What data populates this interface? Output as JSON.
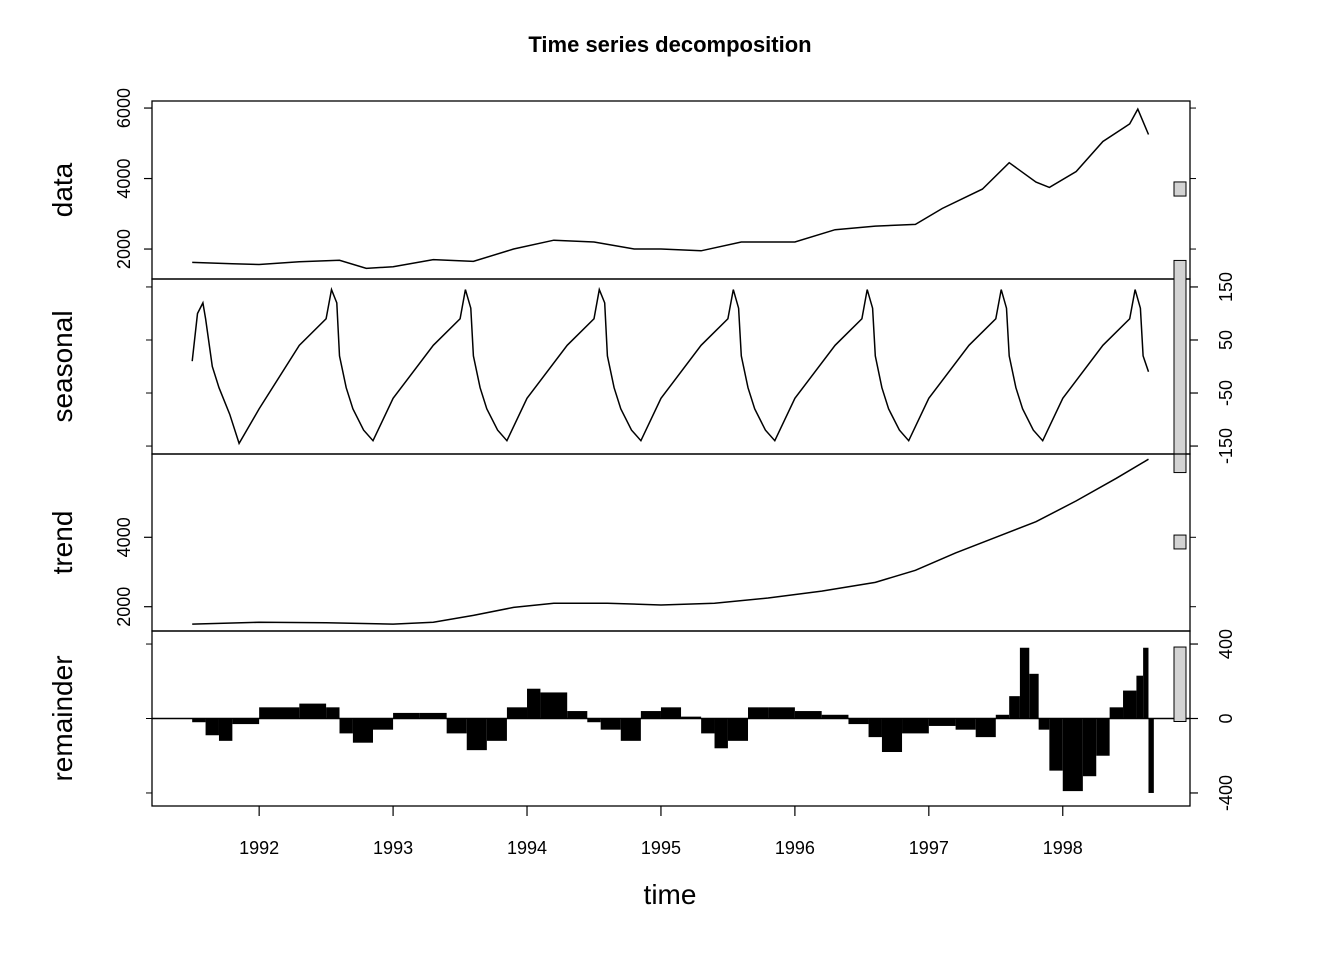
{
  "chart_data": {
    "type": "line",
    "title": "Time series decomposition",
    "xlabel": "time",
    "xlim": [
      1991.2,
      1998.95
    ],
    "x_ticks": [
      "1992",
      "1993",
      "1994",
      "1995",
      "1996",
      "1997",
      "1998"
    ],
    "x_tick_values": [
      1992,
      1993,
      1994,
      1995,
      1996,
      1997,
      1998
    ],
    "line_color": "#000000",
    "scale_bar_fill": "#d3d3d3",
    "panels": [
      {
        "name": "data",
        "ylabel": "data",
        "ylim": [
          1150,
          6200
        ],
        "ticks": [
          2000,
          4000,
          6000
        ],
        "tick_labels": [
          "2000",
          "4000",
          "6000"
        ],
        "tick_side": "left",
        "style": "line",
        "x": [
          1991.5,
          1991.8,
          1992.0,
          1992.3,
          1992.6,
          1992.8,
          1993.0,
          1993.3,
          1993.6,
          1993.9,
          1994.2,
          1994.5,
          1994.8,
          1995.0,
          1995.3,
          1995.6,
          1995.8,
          1996.0,
          1996.3,
          1996.6,
          1996.9,
          1997.1,
          1997.4,
          1997.6,
          1997.8,
          1997.9,
          1998.1,
          1998.3,
          1998.5,
          1998.56,
          1998.64
        ],
        "y": [
          1620,
          1580,
          1560,
          1640,
          1680,
          1450,
          1500,
          1700,
          1650,
          2000,
          2250,
          2200,
          2000,
          2000,
          1950,
          2200,
          2200,
          2200,
          2550,
          2650,
          2700,
          3150,
          3700,
          4450,
          3900,
          3750,
          4200,
          5050,
          5550,
          5970,
          5250
        ]
      },
      {
        "name": "seasonal",
        "ylabel": "seasonal",
        "ylim": [
          -165,
          165
        ],
        "ticks": [
          -150,
          -50,
          50,
          150
        ],
        "tick_labels": [
          "-150",
          "-50",
          "50",
          "150"
        ],
        "tick_side": "right",
        "style": "line",
        "x": [
          1991.5,
          1991.54,
          1991.58,
          1991.6,
          1991.65,
          1991.7,
          1991.78,
          1991.85,
          1992.0,
          1992.3,
          1992.5,
          1992.54,
          1992.58,
          1992.6,
          1992.65,
          1992.7,
          1992.78,
          1992.85,
          1993.0,
          1993.3,
          1993.5,
          1993.54,
          1993.58,
          1993.6,
          1993.65,
          1993.7,
          1993.78,
          1993.85,
          1994.0,
          1994.3,
          1994.5,
          1994.54,
          1994.58,
          1994.6,
          1994.65,
          1994.7,
          1994.78,
          1994.85,
          1995.0,
          1995.3,
          1995.5,
          1995.54,
          1995.58,
          1995.6,
          1995.65,
          1995.7,
          1995.78,
          1995.85,
          1996.0,
          1996.3,
          1996.5,
          1996.54,
          1996.58,
          1996.6,
          1996.65,
          1996.7,
          1996.78,
          1996.85,
          1997.0,
          1997.3,
          1997.5,
          1997.54,
          1997.58,
          1997.6,
          1997.65,
          1997.7,
          1997.78,
          1997.85,
          1998.0,
          1998.3,
          1998.5,
          1998.54,
          1998.58,
          1998.6,
          1998.64
        ],
        "y": [
          10,
          100,
          120,
          90,
          0,
          -40,
          -90,
          -145,
          -80,
          40,
          90,
          145,
          120,
          20,
          -40,
          -80,
          -120,
          -140,
          -60,
          40,
          90,
          145,
          110,
          20,
          -40,
          -80,
          -120,
          -140,
          -60,
          40,
          90,
          145,
          120,
          20,
          -40,
          -80,
          -120,
          -140,
          -60,
          40,
          90,
          145,
          110,
          20,
          -40,
          -80,
          -120,
          -140,
          -60,
          40,
          90,
          145,
          110,
          20,
          -40,
          -80,
          -120,
          -140,
          -60,
          40,
          90,
          145,
          110,
          20,
          -40,
          -80,
          -120,
          -140,
          -60,
          40,
          90,
          145,
          110,
          20,
          -10
        ]
      },
      {
        "name": "trend",
        "ylabel": "trend",
        "ylim": [
          1300,
          6400
        ],
        "ticks": [
          2000,
          4000
        ],
        "tick_labels": [
          "2000",
          "4000"
        ],
        "tick_side": "left",
        "style": "line",
        "x": [
          1991.5,
          1992.0,
          1992.5,
          1993.0,
          1993.3,
          1993.6,
          1993.9,
          1994.2,
          1994.6,
          1995.0,
          1995.4,
          1995.8,
          1996.2,
          1996.6,
          1996.9,
          1997.2,
          1997.5,
          1997.8,
          1998.1,
          1998.4,
          1998.64
        ],
        "y": [
          1500,
          1550,
          1540,
          1500,
          1550,
          1750,
          1980,
          2100,
          2100,
          2050,
          2100,
          2250,
          2450,
          2700,
          3050,
          3550,
          4000,
          4450,
          5050,
          5700,
          6250
        ]
      },
      {
        "name": "remainder",
        "ylabel": "remainder",
        "ylim": [
          -470,
          470
        ],
        "ticks": [
          -400,
          0,
          400
        ],
        "tick_labels": [
          "-400",
          "0",
          "400"
        ],
        "tick_side": "right",
        "style": "histogram",
        "x": [
          1991.5,
          1991.6,
          1991.7,
          1991.8,
          1992.0,
          1992.3,
          1992.5,
          1992.6,
          1992.7,
          1992.85,
          1993.0,
          1993.2,
          1993.4,
          1993.55,
          1993.7,
          1993.85,
          1994.0,
          1994.1,
          1994.3,
          1994.45,
          1994.55,
          1994.7,
          1994.85,
          1995.0,
          1995.15,
          1995.3,
          1995.4,
          1995.5,
          1995.65,
          1995.8,
          1996.0,
          1996.2,
          1996.4,
          1996.55,
          1996.65,
          1996.8,
          1997.0,
          1997.2,
          1997.35,
          1997.5,
          1997.6,
          1997.68,
          1997.75,
          1997.82,
          1997.9,
          1998.0,
          1998.15,
          1998.25,
          1998.35,
          1998.45,
          1998.55,
          1998.6,
          1998.64
        ],
        "y": [
          -20,
          -90,
          -120,
          -30,
          60,
          80,
          60,
          -80,
          -130,
          -60,
          30,
          30,
          -80,
          -170,
          -120,
          60,
          160,
          140,
          40,
          -20,
          -60,
          -120,
          40,
          60,
          10,
          -80,
          -160,
          -120,
          60,
          60,
          40,
          20,
          -30,
          -100,
          -180,
          -80,
          -40,
          -60,
          -100,
          20,
          120,
          380,
          240,
          -60,
          -280,
          -390,
          -310,
          -200,
          60,
          150,
          230,
          380,
          -400
        ]
      }
    ]
  }
}
